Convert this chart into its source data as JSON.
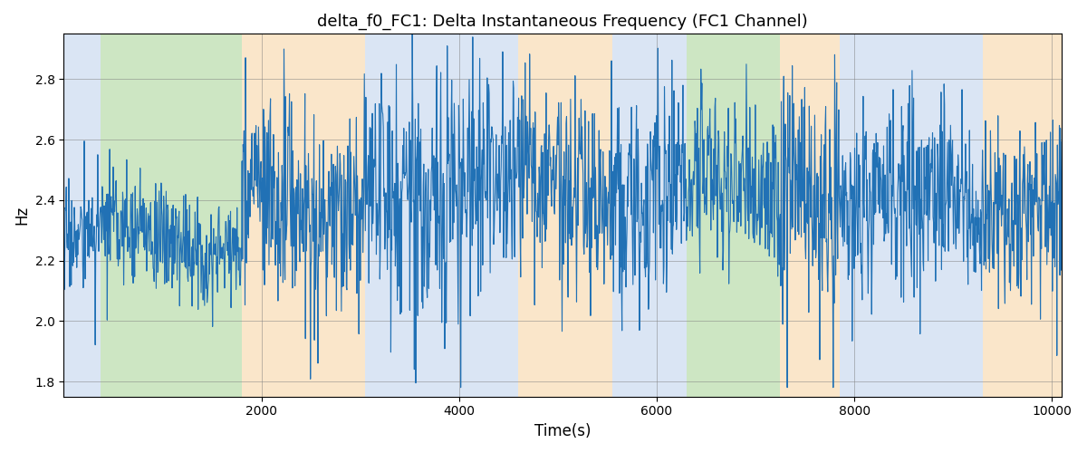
{
  "title": "delta_f0_FC1: Delta Instantaneous Frequency (FC1 Channel)",
  "xlabel": "Time(s)",
  "ylabel": "Hz",
  "xlim": [
    0,
    10100
  ],
  "ylim": [
    1.75,
    2.95
  ],
  "yticks": [
    1.8,
    2.0,
    2.2,
    2.4,
    2.6,
    2.8
  ],
  "xticks": [
    2000,
    4000,
    6000,
    8000,
    10000
  ],
  "line_color": "#2171b5",
  "line_width": 0.8,
  "bg_regions": [
    {
      "xmin": 0,
      "xmax": 370,
      "color": "#aec6e8",
      "alpha": 0.45
    },
    {
      "xmin": 370,
      "xmax": 1800,
      "color": "#90c97a",
      "alpha": 0.45
    },
    {
      "xmin": 1800,
      "xmax": 3050,
      "color": "#f5c98a",
      "alpha": 0.45
    },
    {
      "xmin": 3050,
      "xmax": 4600,
      "color": "#aec6e8",
      "alpha": 0.45
    },
    {
      "xmin": 4600,
      "xmax": 5550,
      "color": "#f5c98a",
      "alpha": 0.45
    },
    {
      "xmin": 5550,
      "xmax": 6300,
      "color": "#aec6e8",
      "alpha": 0.45
    },
    {
      "xmin": 6300,
      "xmax": 7250,
      "color": "#90c97a",
      "alpha": 0.45
    },
    {
      "xmin": 7250,
      "xmax": 7850,
      "color": "#f5c98a",
      "alpha": 0.45
    },
    {
      "xmin": 7850,
      "xmax": 9300,
      "color": "#aec6e8",
      "alpha": 0.45
    },
    {
      "xmin": 9300,
      "xmax": 10100,
      "color": "#f5c98a",
      "alpha": 0.45
    }
  ],
  "seed": 17,
  "n_points": 2000,
  "base_freq": 2.38,
  "figsize": [
    12,
    5
  ],
  "dpi": 100
}
